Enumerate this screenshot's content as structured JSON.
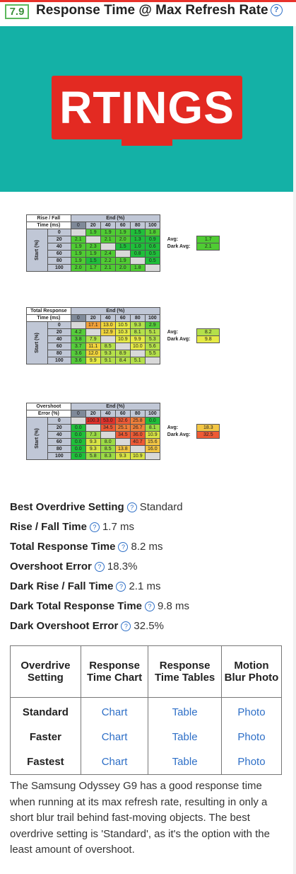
{
  "header": {
    "score": "7.9",
    "title": "Response Time @ Max Refresh Rate",
    "help_icon": "question-circle-icon"
  },
  "banner": {
    "logo_text": "RTINGS",
    "background": "#14b1a6",
    "logo_color": "#e32a22"
  },
  "rise_fall_table": {
    "header_line1": "Rise / Fall",
    "header_line2": "Time (ms)",
    "end_label": "End (%)",
    "start_label": "Start (%)",
    "columns": [
      "0",
      "20",
      "40",
      "60",
      "80",
      "100"
    ],
    "rows": [
      {
        "label": "0",
        "cells": [
          "",
          "1.9",
          "1.9",
          "1.9",
          "1.5",
          "1.8"
        ]
      },
      {
        "label": "20",
        "cells": [
          "2.1",
          "",
          "2.1",
          "2.0",
          "1.3",
          "0.9"
        ]
      },
      {
        "label": "40",
        "cells": [
          "1.9",
          "2.3",
          "",
          "1.5",
          "1.0",
          "0.6"
        ]
      },
      {
        "label": "60",
        "cells": [
          "1.9",
          "1.9",
          "2.4",
          "",
          "0.8",
          "0.5"
        ]
      },
      {
        "label": "80",
        "cells": [
          "1.9",
          "1.5",
          "2.2",
          "1.9",
          "",
          "0.5"
        ]
      },
      {
        "label": "100",
        "cells": [
          "2.0",
          "1.7",
          "2.1",
          "2.0",
          "1.8",
          ""
        ]
      }
    ],
    "avg_label": "Avg:",
    "avg_value": "1.7",
    "dark_avg_label": "Dark Avg:",
    "dark_avg_value": "2.1"
  },
  "total_response_table": {
    "header_line1": "Total Response",
    "header_line2": "Time (ms)",
    "end_label": "End (%)",
    "start_label": "Start (%)",
    "columns": [
      "0",
      "20",
      "40",
      "60",
      "80",
      "100"
    ],
    "rows": [
      {
        "label": "0",
        "cells": [
          "",
          "17.1",
          "13.0",
          "10.5",
          "9.3",
          "2.9"
        ]
      },
      {
        "label": "20",
        "cells": [
          "4.2",
          "",
          "12.9",
          "10.3",
          "8.1",
          "5.1"
        ]
      },
      {
        "label": "40",
        "cells": [
          "3.8",
          "7.9",
          "",
          "10.9",
          "9.9",
          "5.3"
        ]
      },
      {
        "label": "60",
        "cells": [
          "3.7",
          "11.1",
          "8.5",
          "",
          "10.0",
          "5.6"
        ]
      },
      {
        "label": "80",
        "cells": [
          "3.6",
          "12.0",
          "9.3",
          "8.9",
          "",
          "5.5"
        ]
      },
      {
        "label": "100",
        "cells": [
          "3.6",
          "9.9",
          "9.1",
          "8.4",
          "5.1",
          ""
        ]
      }
    ],
    "avg_label": "Avg:",
    "avg_value": "8.2",
    "dark_avg_label": "Dark Avg:",
    "dark_avg_value": "9.8"
  },
  "overshoot_table": {
    "header_line1": "Overshoot",
    "header_line2": "Error (%)",
    "end_label": "End (%)",
    "start_label": "Start (%)",
    "columns": [
      "0",
      "20",
      "40",
      "60",
      "80",
      "100"
    ],
    "rows": [
      {
        "label": "0",
        "cells": [
          "",
          "100.3",
          "53.0",
          "32.6",
          "25.8",
          "0.0"
        ]
      },
      {
        "label": "20",
        "cells": [
          "0.0",
          "",
          "34.5",
          "25.1",
          "26.7",
          "8.1"
        ]
      },
      {
        "label": "40",
        "cells": [
          "0.0",
          "7.3",
          "",
          "34.5",
          "36.0",
          "10.9"
        ]
      },
      {
        "label": "60",
        "cells": [
          "0.0",
          "9.3",
          "8.0",
          "",
          "40.7",
          "15.6"
        ]
      },
      {
        "label": "80",
        "cells": [
          "0.0",
          "9.3",
          "8.5",
          "13.8",
          "",
          "16.0"
        ]
      },
      {
        "label": "100",
        "cells": [
          "0.0",
          "5.8",
          "8.3",
          "9.3",
          "10.9",
          ""
        ]
      }
    ],
    "avg_label": "Avg:",
    "avg_value": "18.3",
    "dark_avg_label": "Dark Avg:",
    "dark_avg_value": "32.5"
  },
  "stats": [
    {
      "label": "Best Overdrive Setting",
      "value": "Standard"
    },
    {
      "label": "Rise / Fall Time",
      "value": "1.7 ms"
    },
    {
      "label": "Total Response Time",
      "value": "8.2 ms"
    },
    {
      "label": "Overshoot Error",
      "value": "18.3%"
    },
    {
      "label": "Dark Rise / Fall Time",
      "value": "2.1 ms"
    },
    {
      "label": "Dark Total Response Time",
      "value": "9.8 ms"
    },
    {
      "label": "Dark Overshoot Error",
      "value": "32.5%"
    }
  ],
  "links_table": {
    "headers": [
      "Overdrive Setting",
      "Response Time Chart",
      "Response Time Tables",
      "Motion Blur Photo"
    ],
    "rows": [
      {
        "setting": "Standard",
        "chart": "Chart",
        "table": "Table",
        "photo": "Photo"
      },
      {
        "setting": "Faster",
        "chart": "Chart",
        "table": "Table",
        "photo": "Photo"
      },
      {
        "setting": "Fastest",
        "chart": "Chart",
        "table": "Table",
        "photo": "Photo"
      }
    ]
  },
  "description": "The Samsung Odyssey G9 has a good response time when running at its max refresh rate, resulting in only a short blur trail behind fast-moving objects. The best overdrive setting is 'Standard', as it's the option with the least amount of overshoot."
}
